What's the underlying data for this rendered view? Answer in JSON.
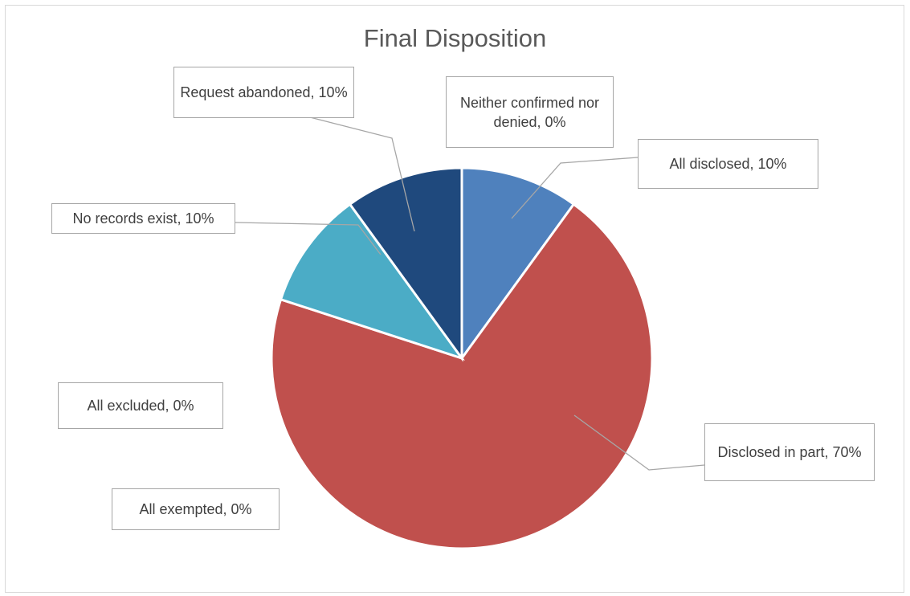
{
  "chart_data": {
    "type": "pie",
    "title": "Final Disposition",
    "slices": [
      {
        "name": "All disclosed",
        "value": 10,
        "label": "All disclosed, 10%",
        "color": "#4f81bd"
      },
      {
        "name": "Disclosed in part",
        "value": 70,
        "label": "Disclosed in part, 70%",
        "color": "#c0504d"
      },
      {
        "name": "All exempted",
        "value": 0,
        "label": "All exempted, 0%",
        "color": "#9bbb59"
      },
      {
        "name": "All excluded",
        "value": 0,
        "label": "All excluded, 0%",
        "color": "#8064a2"
      },
      {
        "name": "No records exist",
        "value": 10,
        "label": "No records exist, 10%",
        "color": "#4bacc6"
      },
      {
        "name": "Request abandoned",
        "value": 10,
        "label": "Request abandoned, 10%",
        "color": "#1f497d"
      },
      {
        "name": "Neither confirmed nor denied",
        "value": 0,
        "label": "Neither confirmed nor denied, 0%",
        "color": "#f79646"
      }
    ],
    "unit": "%",
    "legend": "none",
    "data_labels": "callout"
  }
}
